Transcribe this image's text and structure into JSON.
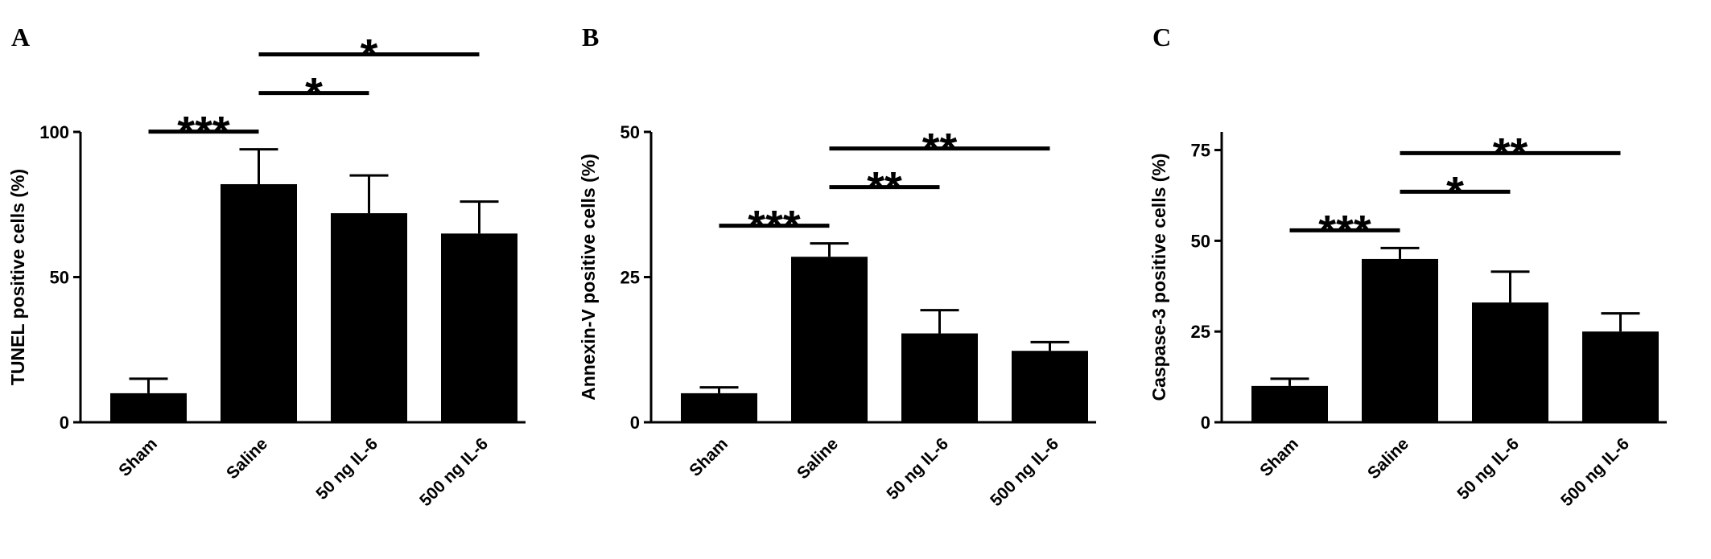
{
  "chart_data": [
    {
      "type": "bar",
      "panel_label": "A",
      "y_label": "TUNEL positive cells (%)",
      "categories": [
        "Sham",
        "Saline",
        "50 ng IL-6",
        "500 ng IL-6"
      ],
      "values": [
        10,
        82,
        72,
        65
      ],
      "errors": [
        5,
        12,
        13,
        11
      ],
      "color": "#000000",
      "ylim": [
        0,
        100
      ],
      "yticks": [
        0,
        50,
        100
      ],
      "annotations": [
        {
          "text": "***",
          "between": [
            0,
            1
          ]
        },
        {
          "text": "*",
          "between": [
            1,
            2
          ]
        },
        {
          "text": "*",
          "between": [
            1,
            3
          ]
        }
      ]
    },
    {
      "type": "bar",
      "panel_label": "B",
      "y_label": "Annexin-V positive cells (%)",
      "categories": [
        "Sham",
        "Saline",
        "50 ng IL-6",
        "500 ng IL-6"
      ],
      "values": [
        5,
        28.5,
        15.3,
        12.3
      ],
      "errors": [
        1,
        2.3,
        4,
        1.5
      ],
      "color": "#000000",
      "ylim": [
        0,
        50
      ],
      "yticks": [
        0,
        25,
        50
      ],
      "annotations": [
        {
          "text": "***",
          "between": [
            0,
            1
          ]
        },
        {
          "text": "**",
          "between": [
            1,
            2
          ]
        },
        {
          "text": "**",
          "between": [
            1,
            3
          ]
        }
      ]
    },
    {
      "type": "bar",
      "panel_label": "C",
      "y_label": "Caspase-3 positive cells (%)",
      "categories": [
        "Sham",
        "Saline",
        "50 ng IL-6",
        "500 ng IL-6"
      ],
      "values": [
        10,
        45,
        33,
        25
      ],
      "errors": [
        2,
        3,
        8.5,
        5
      ],
      "color": "#000000",
      "ylim": [
        0,
        80
      ],
      "yticks": [
        0,
        25,
        50,
        75
      ],
      "annotations": [
        {
          "text": "***",
          "between": [
            0,
            1
          ]
        },
        {
          "text": "*",
          "between": [
            1,
            2
          ]
        },
        {
          "text": "**",
          "between": [
            1,
            3
          ]
        }
      ]
    }
  ]
}
